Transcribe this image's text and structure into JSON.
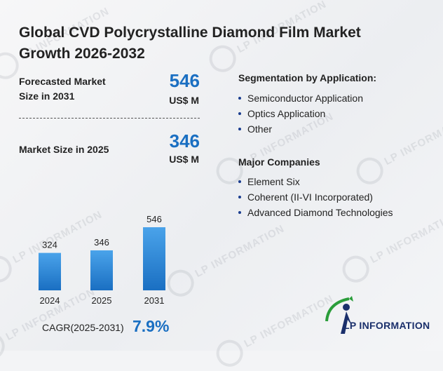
{
  "title": "Global CVD Polycrystalline Diamond Film Market Growth 2026-2032",
  "forecast": {
    "label_line1": "Forecasted Market",
    "label_line2": "Size in 2031",
    "value": "546",
    "unit": "US$ M"
  },
  "current": {
    "label": "Market Size in 2025",
    "value": "346",
    "unit": "US$ M"
  },
  "segmentation": {
    "title": "Segmentation by Application:",
    "items": [
      "Semiconductor Application",
      "Optics Application",
      "Other"
    ]
  },
  "companies": {
    "title": "Major Companies",
    "items": [
      "Element Six",
      "Coherent (II-VI Incorporated)",
      "Advanced Diamond Technologies"
    ]
  },
  "cagr": {
    "label": "CAGR(2025-2031)",
    "value": "7.9%"
  },
  "logo": {
    "text": "LP INFORMATION"
  },
  "watermark": {
    "text": "LP INFORMATION"
  },
  "colors": {
    "accent": "#1a6fc2",
    "bar_top": "#4aa3ea",
    "bar_bottom": "#1a6fc2"
  },
  "chart_data": {
    "type": "bar",
    "categories": [
      "2024",
      "2025",
      "2031"
    ],
    "values": [
      324,
      346,
      546
    ],
    "data_labels": [
      "324",
      "346",
      "546"
    ],
    "title": "",
    "xlabel": "",
    "ylabel": "",
    "grid": false
  }
}
